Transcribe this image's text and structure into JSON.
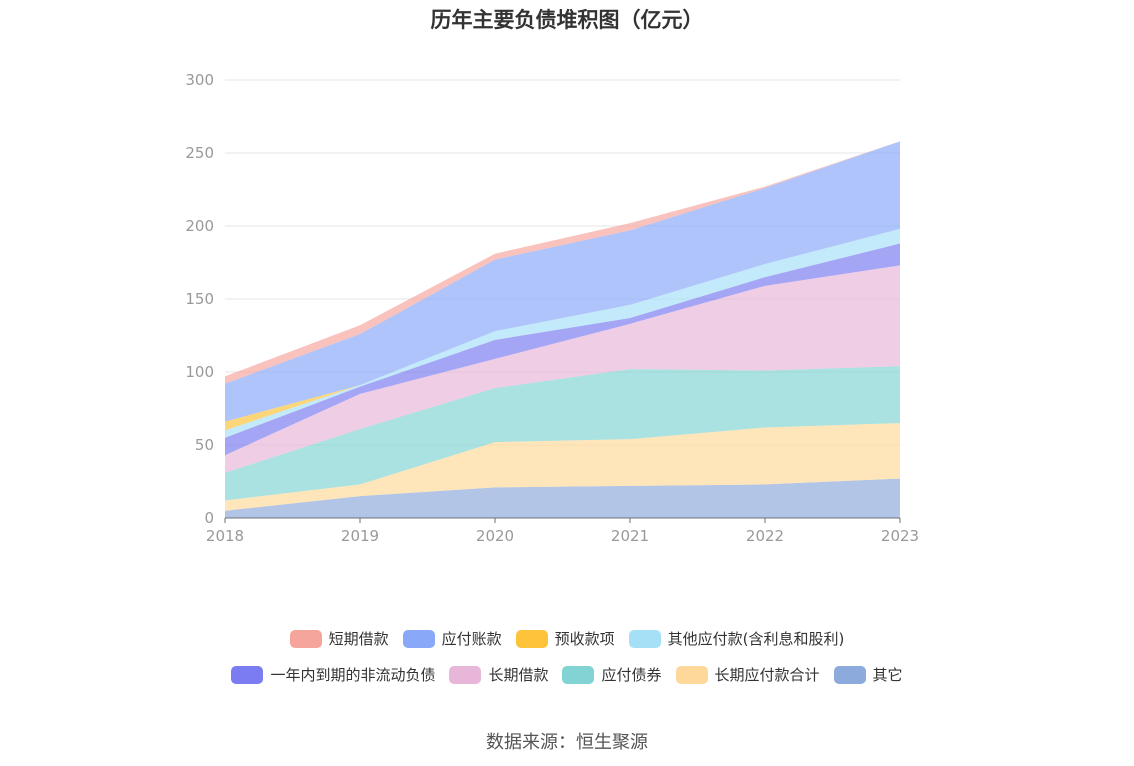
{
  "title": "历年主要负债堆积图（亿元）",
  "source": "数据来源：恒生聚源",
  "chart_data": {
    "type": "area",
    "stacked": true,
    "x": [
      "2018",
      "2019",
      "2020",
      "2021",
      "2022",
      "2023"
    ],
    "yticks": [
      "0",
      "50",
      "100",
      "150",
      "200",
      "250",
      "300"
    ],
    "ylim": [
      0,
      300
    ],
    "grid": true,
    "legend_position": "bottom",
    "series": [
      {
        "name": "其它",
        "color": "#8daadc",
        "values": [
          5,
          15,
          21,
          22,
          23,
          27
        ]
      },
      {
        "name": "长期应付款合计",
        "color": "#fdd89a",
        "values": [
          7,
          8,
          31,
          32,
          39,
          38
        ]
      },
      {
        "name": "应付债券",
        "color": "#82d3d3",
        "values": [
          19,
          38,
          37,
          48,
          39,
          39
        ]
      },
      {
        "name": "长期借款",
        "color": "#e8b6d9",
        "values": [
          12,
          24,
          20,
          31,
          58,
          69
        ]
      },
      {
        "name": "一年内到期的非流动负债",
        "color": "#7b7bf2",
        "values": [
          12,
          5,
          13,
          4,
          6,
          15
        ]
      },
      {
        "name": "其他应付款(含利息和股利)",
        "color": "#a6e0f7",
        "values": [
          5,
          1,
          6,
          9,
          9,
          10
        ]
      },
      {
        "name": "预收款项",
        "color": "#fcc33b",
        "values": [
          6,
          0,
          0,
          0,
          0,
          0
        ]
      },
      {
        "name": "应付账款",
        "color": "#89a8f7",
        "values": [
          26,
          35,
          49,
          51,
          52,
          60
        ]
      },
      {
        "name": "短期借款",
        "color": "#f6a59c",
        "values": [
          5,
          6,
          4,
          5,
          1,
          0
        ]
      }
    ],
    "legend_rows": [
      [
        "短期借款",
        "应付账款",
        "预收款项",
        "其他应付款(含利息和股利)"
      ],
      [
        "一年内到期的非流动负债",
        "长期借款",
        "应付债券",
        "长期应付款合计",
        "其它"
      ]
    ]
  }
}
